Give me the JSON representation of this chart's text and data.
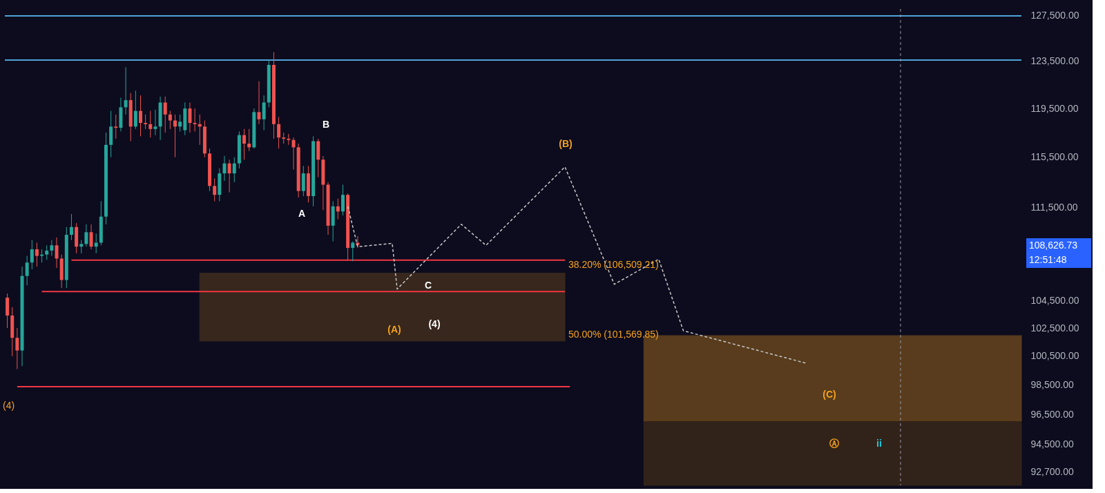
{
  "chart_data": {
    "type": "candlestick",
    "colors": [
      "#ef5350",
      "#ef5350",
      "#ef5350",
      "#26a69a",
      "#26a69a",
      "#26a69a",
      "#ef5350",
      "#26a69a",
      "#26a69a",
      "#26a69a",
      "#ef5350",
      "#ef5350",
      "#26a69a",
      "#26a69a",
      "#ef5350",
      "#26a69a",
      "#26a69a",
      "#ef5350",
      "#26a69a",
      "#26a69a",
      "#26a69a",
      "#26a69a",
      "#ef5350",
      "#26a69a",
      "#26a69a",
      "#ef5350",
      "#26a69a",
      "#ef5350",
      "#ef5350",
      "#ef5350",
      "#26a69a",
      "#26a69a",
      "#ef5350",
      "#ef5350",
      "#ef5350",
      "#26a69a",
      "#26a69a",
      "#ef5350",
      "#ef5350",
      "#ef5350",
      "#ef5350",
      "#ef5350",
      "#ef5350",
      "#26a69a",
      "#26a69a",
      "#ef5350",
      "#26a69a",
      "#26a69a",
      "#ef5350",
      "#ef5350",
      "#26a69a",
      "#ef5350",
      "#26a69a",
      "#26a69a",
      "#ef5350",
      "#ef5350",
      "#ef5350",
      "#ef5350",
      "#ef5350",
      "#ef5350",
      "#26a69a",
      "#ef5350",
      "#26a69a",
      "#ef5350",
      "#ef5350",
      "#ef5350",
      "#26a69a",
      "#ef5350",
      "#26a69a",
      "#ef5350",
      "#26a69a",
      "#ef5350",
      null,
      null,
      null,
      null,
      null,
      null,
      null,
      null,
      null,
      null,
      null,
      null,
      null,
      null,
      null,
      null,
      null,
      null,
      null,
      null,
      null,
      null,
      null,
      null,
      null,
      null,
      null,
      null,
      null,
      null,
      null,
      null,
      null,
      null,
      null,
      null,
      null,
      null,
      null,
      null,
      null,
      null,
      null,
      null,
      null,
      null,
      null,
      null,
      null,
      null,
      null,
      null,
      null,
      null,
      null,
      null,
      null,
      null,
      null,
      null,
      null,
      null,
      null,
      null,
      null,
      null,
      null,
      null,
      null,
      null,
      null,
      null,
      null,
      null,
      null,
      null,
      null,
      null,
      null,
      null,
      null,
      null,
      null,
      null,
      null,
      null,
      null,
      null,
      null,
      null,
      null,
      null,
      null,
      null,
      null,
      null,
      null,
      null,
      null,
      null,
      null,
      null,
      null,
      null,
      null,
      null,
      null,
      null,
      null,
      null,
      null,
      null,
      null,
      null,
      null,
      null,
      null,
      null,
      null,
      null,
      null,
      null,
      null,
      null,
      null,
      null,
      null,
      null,
      null,
      null,
      null,
      null,
      null,
      null
    ],
    "categories": [
      null,
      null,
      null,
      null,
      null,
      null,
      null,
      null,
      null,
      null,
      null,
      null,
      null,
      null,
      null,
      null,
      null,
      null,
      null,
      null,
      null,
      null,
      null,
      null,
      null,
      null,
      null,
      null,
      null,
      null,
      null,
      null,
      null,
      null,
      null,
      null,
      null,
      null,
      null,
      null,
      null,
      null,
      null,
      null,
      null,
      null,
      null,
      null,
      null,
      null,
      null,
      null,
      null,
      null,
      null,
      null,
      null,
      null,
      null,
      null,
      null,
      null,
      null,
      null,
      null,
      null,
      null,
      null,
      null,
      null,
      null,
      null,
      null,
      null,
      null,
      null,
      null,
      null,
      null,
      null,
      null,
      null,
      null,
      null,
      null,
      null,
      null,
      null,
      null,
      null,
      null,
      null,
      null,
      null,
      null,
      null,
      null,
      null,
      null,
      null,
      null,
      null,
      null,
      null,
      null,
      null,
      null,
      null,
      null,
      null,
      null,
      null,
      null,
      null,
      null,
      null,
      null,
      null,
      null,
      null,
      null,
      null,
      null,
      null,
      null,
      null,
      null,
      null,
      null,
      null,
      null,
      null,
      null,
      null,
      null,
      null,
      null,
      null,
      null,
      null,
      null,
      null,
      null,
      null,
      null,
      null,
      null,
      null,
      null,
      null,
      null,
      null,
      null,
      null,
      null,
      null,
      null,
      null,
      null,
      null,
      null,
      null,
      null,
      null,
      null,
      null,
      null,
      null,
      null,
      null,
      null,
      null,
      null,
      null,
      null,
      null,
      null,
      null,
      null,
      null,
      null,
      null,
      null,
      null,
      null,
      null,
      null,
      null,
      null,
      null,
      null,
      null,
      null,
      null,
      null,
      null,
      null,
      null,
      null,
      null,
      null,
      null,
      null,
      null,
      null,
      null
    ],
    "ohlc": [
      [
        104700,
        105000,
        102500,
        103400
      ],
      [
        103400,
        104000,
        100500,
        101800
      ],
      [
        101800,
        102500,
        99600,
        100900
      ],
      [
        100900,
        107000,
        99800,
        106300
      ],
      [
        106300,
        107800,
        105600,
        107300
      ],
      [
        107300,
        109000,
        106800,
        108300
      ],
      [
        108300,
        108800,
        107000,
        107800
      ],
      [
        107800,
        108300,
        107300,
        107900
      ],
      [
        107900,
        108600,
        107500,
        108200
      ],
      [
        108200,
        109000,
        107800,
        108600
      ],
      [
        108600,
        109200,
        106900,
        107600
      ],
      [
        107600,
        107900,
        105400,
        106000
      ],
      [
        106000,
        110000,
        105400,
        109400
      ],
      [
        109400,
        111000,
        109000,
        110000
      ],
      [
        110000,
        110300,
        108000,
        108500
      ],
      [
        108500,
        109000,
        108000,
        108700
      ],
      [
        108700,
        110200,
        108500,
        109600
      ],
      [
        109600,
        110200,
        108300,
        108500
      ],
      [
        108500,
        109500,
        108000,
        108800
      ],
      [
        108800,
        112000,
        108600,
        110800
      ],
      [
        110800,
        117500,
        110200,
        116500
      ],
      [
        116500,
        119300,
        115500,
        118000
      ],
      [
        118000,
        119000,
        117000,
        117900
      ],
      [
        117900,
        120400,
        117600,
        119600
      ],
      [
        119600,
        123000,
        119000,
        120200
      ],
      [
        120200,
        120800,
        116800,
        118000
      ],
      [
        118000,
        121000,
        117800,
        119300
      ],
      [
        119300,
        120600,
        117200,
        118300
      ],
      [
        118300,
        119000,
        117800,
        118200
      ],
      [
        118200,
        119300,
        117100,
        117800
      ],
      [
        117800,
        119400,
        117300,
        118000
      ],
      [
        118000,
        120500,
        116900,
        120000
      ],
      [
        120000,
        120500,
        117500,
        119000
      ],
      [
        119000,
        119300,
        117800,
        118500
      ],
      [
        118500,
        119000,
        115500,
        118000
      ],
      [
        118000,
        119000,
        117600,
        118400
      ],
      [
        117700,
        120000,
        117300,
        119500
      ],
      [
        119500,
        120000,
        117500,
        118300
      ],
      [
        118300,
        119500,
        117600,
        118200
      ],
      [
        118200,
        119000,
        116500,
        118000
      ],
      [
        118000,
        118500,
        115500,
        115800
      ],
      [
        115800,
        116200,
        112800,
        113200
      ],
      [
        113200,
        113800,
        112000,
        112500
      ],
      [
        112500,
        114600,
        112000,
        114200
      ],
      [
        114200,
        115600,
        113600,
        115000
      ],
      [
        115000,
        115300,
        112700,
        114200
      ],
      [
        114200,
        115500,
        113500,
        115000
      ],
      [
        115000,
        117600,
        114600,
        117300
      ],
      [
        117300,
        117800,
        115300,
        116600
      ],
      [
        116600,
        117800,
        116000,
        116300
      ],
      [
        116300,
        119500,
        116200,
        119200
      ],
      [
        119200,
        121800,
        118200,
        118600
      ],
      [
        118600,
        120600,
        117700,
        120000
      ],
      [
        120000,
        123600,
        119600,
        123200
      ],
      [
        123200,
        124300,
        117000,
        118200
      ],
      [
        118200,
        118800,
        116200,
        117100
      ],
      [
        117100,
        117500,
        116600,
        117000
      ],
      [
        117000,
        117400,
        116500,
        116900
      ],
      [
        116900,
        117100,
        114500,
        116300
      ],
      [
        116300,
        116600,
        112300,
        112800
      ],
      [
        112800,
        114800,
        112400,
        114200
      ],
      [
        114200,
        114800,
        111900,
        112400
      ],
      [
        112400,
        117200,
        111600,
        116800
      ],
      [
        116800,
        117000,
        113900,
        115300
      ],
      [
        115300,
        115600,
        111300,
        113300
      ],
      [
        113300,
        113500,
        109400,
        110100
      ],
      [
        110100,
        112000,
        108900,
        111600
      ],
      [
        111600,
        112200,
        110600,
        111200
      ],
      [
        111200,
        113300,
        110900,
        112500
      ],
      [
        112500,
        112600,
        107500,
        108400
      ],
      [
        108400,
        108900,
        107400,
        108800
      ],
      [
        108800,
        109300,
        108400,
        108626.73
      ],
      null,
      null,
      null,
      null,
      null,
      null,
      null,
      null,
      null,
      null,
      null,
      null,
      null,
      null,
      null,
      null,
      null,
      null,
      null,
      null,
      null,
      null,
      null,
      null,
      null,
      null,
      null,
      null,
      null,
      null,
      null,
      null,
      null,
      null,
      null,
      null,
      null,
      null,
      null,
      null,
      null,
      null,
      null,
      null,
      null,
      null,
      null,
      null,
      null,
      null,
      null,
      null,
      null,
      null,
      null,
      null,
      null,
      null,
      null,
      null,
      null,
      null,
      null,
      null,
      null,
      null,
      null,
      null,
      null,
      null,
      null,
      null,
      null,
      null,
      null,
      null,
      null,
      null,
      null,
      null,
      null,
      null,
      null,
      null,
      null,
      null,
      null,
      null,
      null,
      null,
      null,
      null,
      null,
      null,
      null,
      null,
      null,
      null,
      null,
      null,
      null,
      null,
      null,
      null,
      null,
      null,
      null,
      null,
      null,
      null,
      null,
      null,
      null,
      null,
      null,
      null,
      null,
      null,
      null,
      null,
      null,
      null,
      null,
      null,
      null,
      null,
      null,
      null,
      null,
      null,
      null,
      null,
      null,
      null
    ],
    "series": [
      {
        "type": "line",
        "color": "#c8c8c8",
        "line_style": "dashed",
        "values": [
          null,
          null,
          null,
          null,
          null,
          null,
          null,
          null,
          null,
          null,
          null,
          null,
          null,
          null,
          null,
          null,
          null,
          null,
          null,
          null,
          null,
          null,
          null,
          null,
          null,
          null,
          null,
          null,
          null,
          null,
          null,
          null,
          null,
          null,
          null,
          null,
          null,
          null,
          null,
          null,
          null,
          null,
          null,
          null,
          null,
          null,
          null,
          null,
          null,
          null,
          null,
          null,
          null,
          null,
          null,
          null,
          null,
          null,
          null,
          null,
          null,
          null,
          null,
          null,
          null,
          null,
          null,
          null,
          null,
          111600,
          null,
          108490,
          null,
          null,
          null,
          null,
          null,
          null,
          108750,
          105330,
          null,
          null,
          null,
          null,
          null,
          null,
          null,
          null,
          null,
          null,
          null,
          null,
          110210,
          null,
          null,
          null,
          null,
          108600,
          null,
          null,
          null,
          null,
          null,
          null,
          null,
          null,
          null,
          null,
          null,
          null,
          null,
          null,
          null,
          114720,
          null,
          null,
          null,
          null,
          null,
          null,
          null,
          null,
          null,
          105680,
          null,
          null,
          null,
          null,
          null,
          null,
          null,
          null,
          107550,
          null,
          null,
          null,
          null,
          102300,
          null,
          null,
          null,
          null,
          null,
          null,
          null,
          null,
          null,
          null,
          null,
          null,
          null,
          null,
          null,
          null,
          null,
          null,
          null,
          null,
          null,
          null,
          null,
          null,
          100000,
          null,
          null,
          null,
          null,
          null,
          null,
          null,
          null,
          null,
          null,
          null,
          null,
          null,
          null,
          null,
          null,
          null,
          null,
          null,
          null,
          null,
          null,
          null,
          null,
          null,
          null,
          null,
          null,
          null,
          null,
          null,
          null,
          null,
          null,
          null,
          null,
          null,
          null,
          null,
          null,
          null,
          null,
          null
        ]
      }
    ],
    "log": true,
    "ylim": [
      91820,
      128110
    ],
    "yticks": [
      {
        "value": 92700,
        "label": "92,700.00"
      },
      {
        "value": 94500,
        "label": "94,500.00"
      },
      {
        "value": 96500,
        "label": "96,500.00"
      },
      {
        "value": 98500,
        "label": "98,500.00"
      },
      {
        "value": 100500,
        "label": "100,500.00"
      },
      {
        "value": 102500,
        "label": "102,500.00"
      },
      {
        "value": 104500,
        "label": "104,500.00"
      },
      {
        "value": 111500,
        "label": "111,500.00"
      },
      {
        "value": 115500,
        "label": "115,500.00"
      },
      {
        "value": 119500,
        "label": "119,500.00"
      },
      {
        "value": 123500,
        "label": "123,500.00"
      },
      {
        "value": 127500,
        "label": "127,500.00"
      }
    ],
    "tick_labels": "y",
    "grid": false,
    "ref_lines": [
      {
        "axis": "y",
        "value": 127500,
        "color": "#4fa3d8"
      },
      {
        "axis": "y",
        "value": 123620,
        "color": "#4fa3d8"
      },
      {
        "axis": "y",
        "value": 107480,
        "color": "#f23645"
      },
      {
        "axis": "y",
        "value": 105150,
        "color": "#f23645"
      },
      {
        "axis": "y",
        "value": 98380,
        "color": "#f23645"
      }
    ],
    "bands": [
      {
        "axis": "y",
        "from": 101569.85,
        "to": 106509.21,
        "color": "#f7a21b"
      },
      {
        "axis": "y",
        "from": 96080,
        "to": 101950,
        "color": "#f7a21b"
      },
      {
        "axis": "y",
        "from": 91820,
        "to": 96080,
        "color": "#8a5a12"
      }
    ],
    "annotations": [
      "(4)",
      "A",
      "B",
      "C",
      "(4)",
      "(A)",
      "(B)",
      "(C)",
      "Ⓐ",
      "ii",
      "38.20% (106,509.21)",
      "50.00% (101,569.85)",
      "108,626.73",
      "12:51:48"
    ]
  }
}
